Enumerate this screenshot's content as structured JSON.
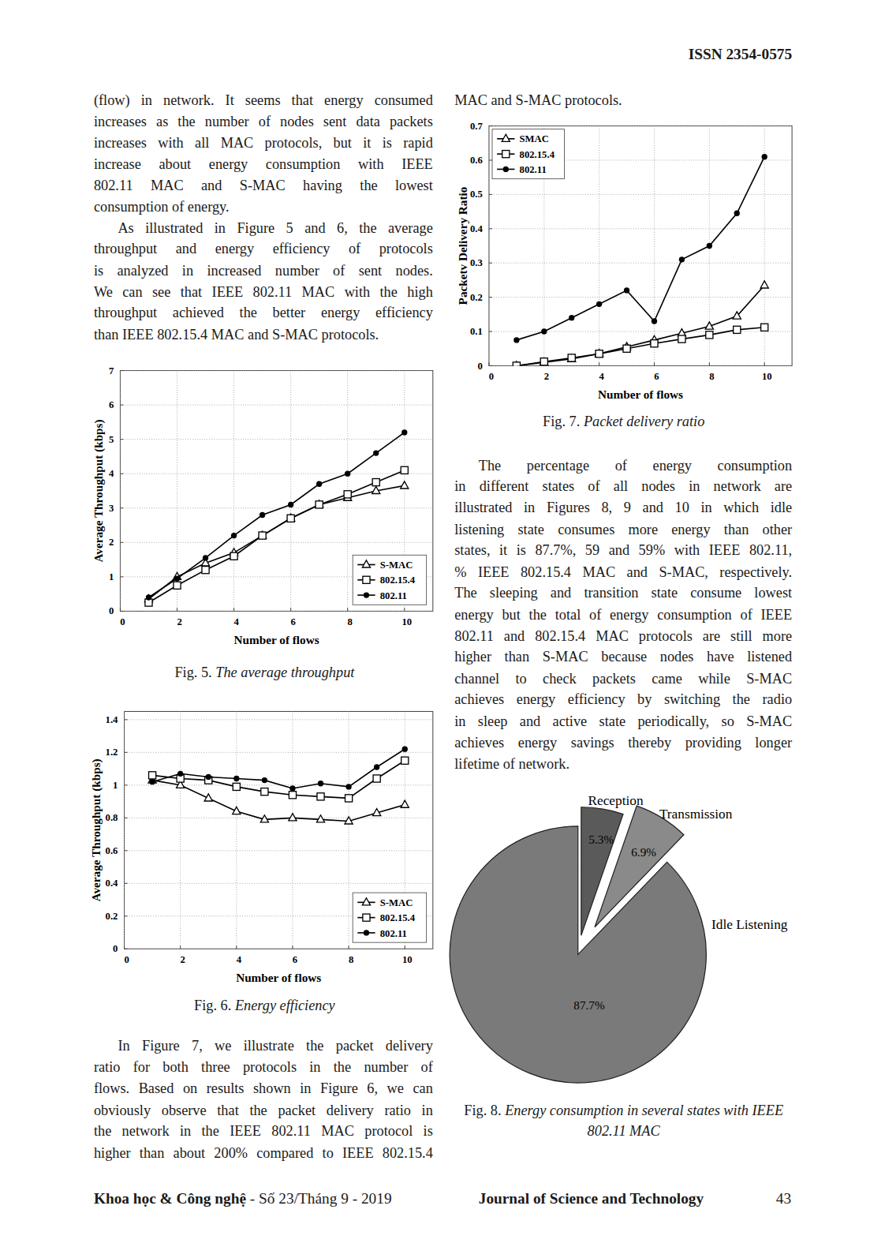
{
  "header": {
    "issn": "ISSN 2354-0575"
  },
  "paragraphs": [
    {
      "lines": [
        "(flow) in network. It seems that energy consumed",
        "increases as the number of nodes sent data packets",
        "increases with all MAC protocols, but it is rapid",
        "increase about energy consumption with IEEE",
        "802.11 MAC and S-MAC having the lowest",
        "consumption of energy."
      ]
    },
    {
      "lines": [
        "As illustrated in Figure 5 and 6, the average",
        "throughput and energy efficiency of protocols",
        "is analyzed in increased number of sent nodes.",
        "We can see that IEEE 802.11 MAC with the high",
        "throughput achieved the better energy efficiency",
        "than IEEE 802.15.4 MAC and S-MAC protocols."
      ]
    },
    {
      "lines": [
        "In Figure 7, we illustrate the packet delivery",
        "ratio for both three protocols in the number of",
        "flows. Based on results shown in Figure 6, we can",
        "obviously observe that the packet delivery ratio in",
        "the network in the IEEE 802.11 MAC protocol is",
        "higher than about 200% compared to IEEE 802.15.4"
      ]
    },
    {
      "lines": [
        "MAC and S-MAC protocols."
      ]
    },
    {
      "lines": [
        "The percentage of energy consumption",
        "in different states of all nodes in network are",
        "illustrated in Figures 8, 9 and 10 in which idle",
        "listening state consumes more energy than other",
        "states, it is 87.7%, 59 and 59% with IEEE 802.11,",
        "% IEEE 802.15.4 MAC and S-MAC, respectively.",
        "The sleeping and transition state consume lowest",
        "energy but the total of energy consumption of IEEE",
        "802.11 and 802.15.4 MAC protocols are still more",
        "higher than S-MAC because nodes have listened",
        "channel to check packets came while S-MAC",
        "achieves energy efficiency by switching the radio",
        "in sleep and active state periodically, so S-MAC",
        "achieves energy savings thereby providing longer",
        "lifetime of network."
      ]
    }
  ],
  "captions": [
    {
      "label": "Fig. 5.",
      "text": "The average throughput"
    },
    {
      "label": "Fig. 6.",
      "text": "Energy efficiency"
    },
    {
      "label": "Fig. 7.",
      "text": "Packet delivery ratio"
    },
    {
      "label": "Fig. 8.",
      "text": "Energy consumption in several states with IEEE 802.11 MAC"
    }
  ],
  "chart_data": [
    {
      "type": "line",
      "x_label": "Number of flows",
      "y_label": "Average Throughput (kbps)",
      "x": [
        1,
        2,
        3,
        4,
        5,
        6,
        7,
        8,
        9,
        10
      ],
      "xlim": [
        0,
        11
      ],
      "xticks": [
        0,
        2,
        4,
        6,
        8,
        10
      ],
      "ylim": [
        0,
        7
      ],
      "yticks": [
        0,
        1,
        2,
        3,
        4,
        5,
        6,
        7
      ],
      "grid": true,
      "legend": "lower right",
      "series": [
        {
          "name": "S-MAC",
          "color": "#000000",
          "marker": "triangle",
          "values": [
            0.35,
            1.0,
            1.4,
            1.7,
            2.2,
            2.7,
            3.1,
            3.3,
            3.5,
            3.65
          ]
        },
        {
          "name": "802.15.4",
          "color": "#000000",
          "marker": "square",
          "values": [
            0.25,
            0.75,
            1.2,
            1.6,
            2.2,
            2.7,
            3.1,
            3.4,
            3.75,
            4.1
          ]
        },
        {
          "name": "802.11",
          "color": "#000000",
          "marker": "circle",
          "values": [
            0.4,
            0.95,
            1.55,
            2.2,
            2.8,
            3.1,
            3.7,
            4.0,
            4.6,
            5.2
          ]
        }
      ]
    },
    {
      "type": "line",
      "x_label": "Number of flows",
      "y_label": "Average Throughput (kbps)",
      "x": [
        1,
        2,
        3,
        4,
        5,
        6,
        7,
        8,
        9,
        10
      ],
      "xlim": [
        0,
        11
      ],
      "xticks": [
        0,
        2,
        4,
        6,
        8,
        10
      ],
      "ylim": [
        0,
        1.45
      ],
      "yticks": [
        0,
        0.2,
        0.4,
        0.6,
        0.8,
        1,
        1.2,
        1.4
      ],
      "grid": true,
      "legend": "lower right",
      "series": [
        {
          "name": "S-MAC",
          "color": "#000000",
          "marker": "triangle",
          "values": [
            1.03,
            1.0,
            0.92,
            0.84,
            0.79,
            0.8,
            0.79,
            0.78,
            0.83,
            0.88
          ]
        },
        {
          "name": "802.15.4",
          "color": "#000000",
          "marker": "square",
          "values": [
            1.06,
            1.04,
            1.03,
            0.99,
            0.96,
            0.94,
            0.93,
            0.92,
            1.04,
            1.15
          ]
        },
        {
          "name": "802.11",
          "color": "#000000",
          "marker": "circle",
          "values": [
            1.02,
            1.07,
            1.05,
            1.04,
            1.03,
            0.98,
            1.01,
            0.99,
            1.11,
            1.22
          ]
        }
      ]
    },
    {
      "type": "line",
      "x_label": "Number of flows",
      "y_label": "Packetv Delivery Ratio",
      "x": [
        1,
        2,
        3,
        4,
        5,
        6,
        7,
        8,
        9,
        10
      ],
      "xlim": [
        0,
        11
      ],
      "xticks": [
        0,
        2,
        4,
        6,
        8,
        10
      ],
      "ylim": [
        0,
        0.7
      ],
      "yticks": [
        0,
        0.1,
        0.2,
        0.3,
        0.4,
        0.5,
        0.6,
        0.7
      ],
      "grid": true,
      "legend": "upper left",
      "series": [
        {
          "name": "SMAC",
          "color": "#000000",
          "marker": "triangle",
          "values": [
            0.0,
            0.01,
            0.02,
            0.035,
            0.055,
            0.075,
            0.095,
            0.115,
            0.145,
            0.235
          ]
        },
        {
          "name": "802.15.4",
          "color": "#000000",
          "marker": "square",
          "values": [
            0.0,
            0.012,
            0.023,
            0.035,
            0.05,
            0.065,
            0.078,
            0.09,
            0.105,
            0.112
          ]
        },
        {
          "name": "802.11",
          "color": "#000000",
          "marker": "circle",
          "values": [
            0.075,
            0.1,
            0.14,
            0.18,
            0.22,
            0.13,
            0.31,
            0.35,
            0.445,
            0.61
          ]
        }
      ]
    },
    {
      "type": "pie",
      "categories": [
        "Reception",
        "Transmission",
        "Idle Listening"
      ],
      "values": [
        5.3,
        6.9,
        87.7
      ],
      "value_labels": [
        "5.3%",
        "6.9%",
        "87.7%"
      ],
      "colors": [
        "#5a5a5a",
        "#8a8a8a",
        "#7a7a7a"
      ],
      "data_labels": true
    }
  ],
  "footer": {
    "journal_vn": "Khoa học & Công nghệ",
    "issue": "- Số 23/Tháng 9 - 2019",
    "journal": "Journal of Science and Technology",
    "page": "43"
  }
}
